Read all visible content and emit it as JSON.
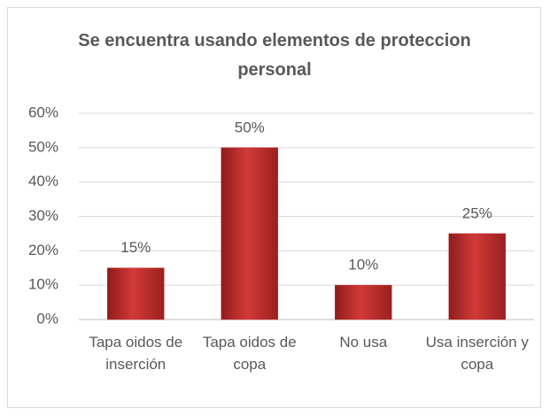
{
  "chart_data": {
    "type": "bar",
    "title": "Se encuentra usando elementos de proteccion personal",
    "categories": [
      "Tapa oidos de inserción",
      "Tapa oidos de copa",
      "No usa",
      "Usa inserción y copa"
    ],
    "values": [
      15,
      50,
      10,
      25
    ],
    "value_labels": [
      "15%",
      "50%",
      "10%",
      "25%"
    ],
    "color": "#c0302f",
    "ylim": [
      0,
      60
    ],
    "yticks": [
      {
        "value": 0,
        "label": "0%"
      },
      {
        "value": 10,
        "label": "10%"
      },
      {
        "value": 20,
        "label": "20%"
      },
      {
        "value": 30,
        "label": "30%"
      },
      {
        "value": 40,
        "label": "40%"
      },
      {
        "value": 50,
        "label": "50%"
      },
      {
        "value": 60,
        "label": "60%"
      }
    ],
    "grid": true
  }
}
